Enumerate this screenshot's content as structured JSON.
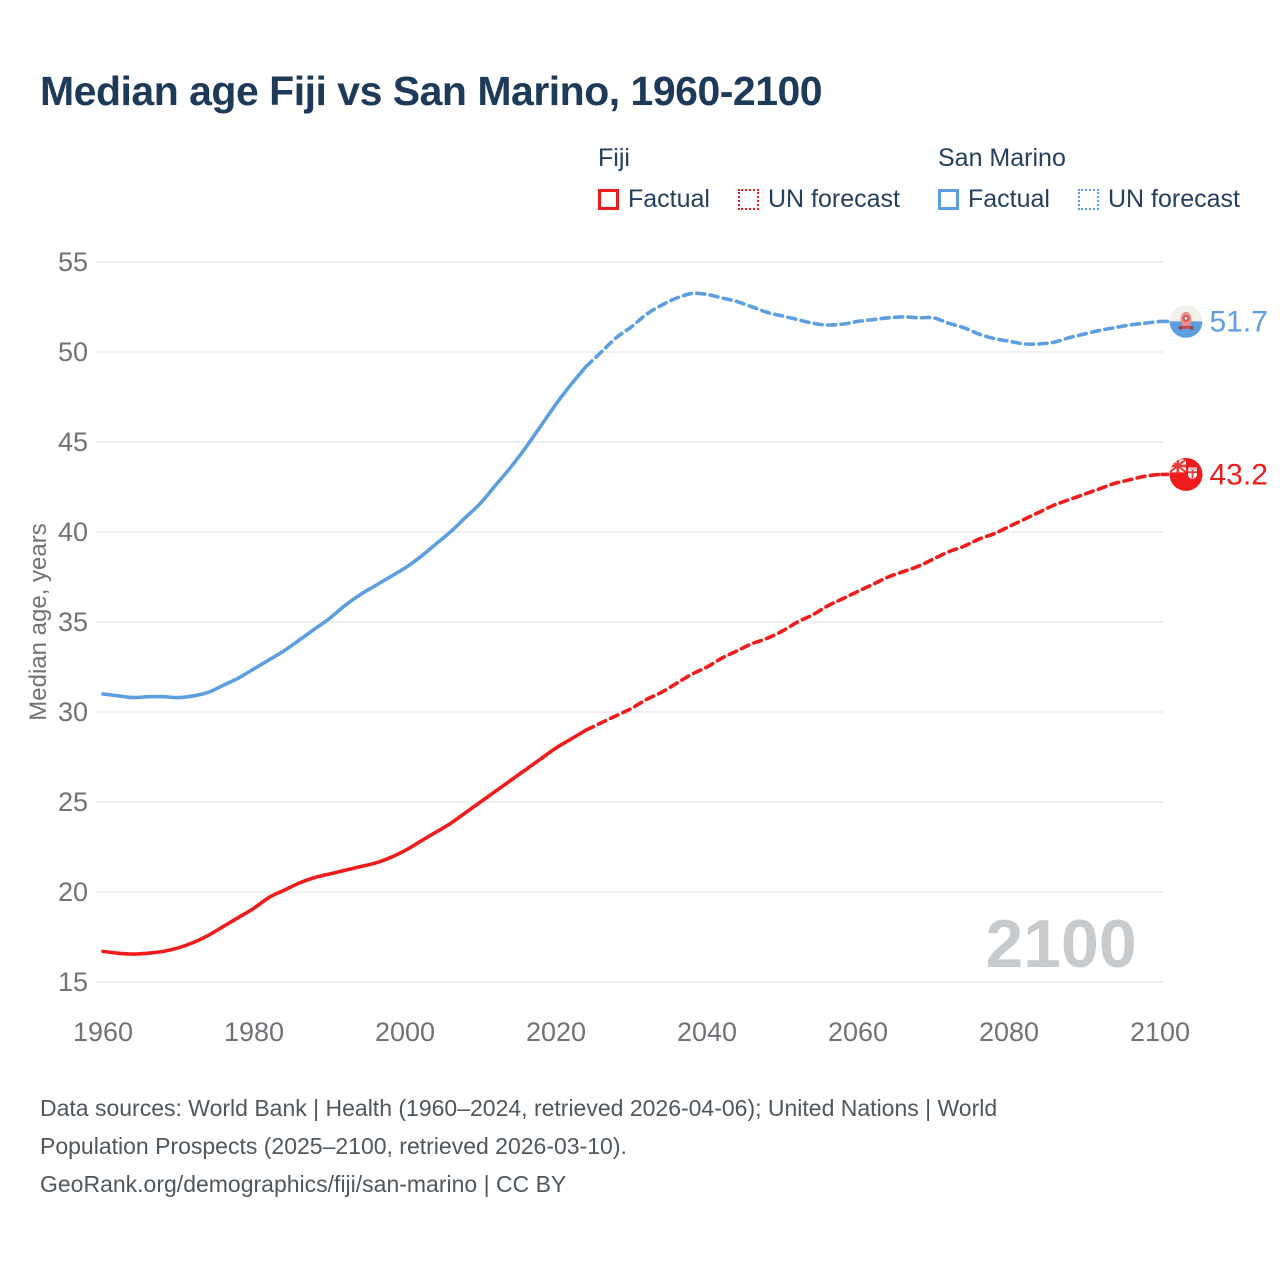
{
  "title": "Median age Fiji vs San Marino, 1960-2100",
  "legend": {
    "groups": [
      {
        "name": "Fiji",
        "color": "#ee1c1c",
        "items": [
          {
            "label": "Factual",
            "style": "solid"
          },
          {
            "label": "UN forecast",
            "style": "dotted"
          }
        ]
      },
      {
        "name": "San Marino",
        "color": "#5d9ee1",
        "items": [
          {
            "label": "Factual",
            "style": "solid"
          },
          {
            "label": "UN forecast",
            "style": "dotted"
          }
        ]
      }
    ]
  },
  "chart_data": {
    "type": "line",
    "title": "Median age Fiji vs San Marino, 1960-2100",
    "xlabel": "",
    "ylabel": "Median age, years",
    "xlim": [
      1955,
      2112
    ],
    "ylim": [
      13,
      57
    ],
    "x_ticks": [
      1960,
      1980,
      2000,
      2020,
      2040,
      2060,
      2080,
      2100
    ],
    "y_ticks": [
      15,
      20,
      25,
      30,
      35,
      40,
      45,
      50,
      55
    ],
    "grid": "horizontal",
    "legend_position": "top-right",
    "watermark": "2100",
    "series": [
      {
        "name": "San Marino — Factual",
        "country": "San Marino",
        "segment": "factual",
        "color": "#5d9ee1",
        "dash": "solid",
        "points": [
          [
            1960,
            31.0
          ],
          [
            1962,
            30.9
          ],
          [
            1964,
            30.8
          ],
          [
            1966,
            30.85
          ],
          [
            1968,
            30.85
          ],
          [
            1970,
            30.8
          ],
          [
            1972,
            30.9
          ],
          [
            1974,
            31.1
          ],
          [
            1976,
            31.5
          ],
          [
            1978,
            31.9
          ],
          [
            1980,
            32.4
          ],
          [
            1982,
            32.9
          ],
          [
            1984,
            33.4
          ],
          [
            1986,
            34.0
          ],
          [
            1988,
            34.6
          ],
          [
            1990,
            35.2
          ],
          [
            1992,
            35.9
          ],
          [
            1994,
            36.5
          ],
          [
            1996,
            37.0
          ],
          [
            1998,
            37.5
          ],
          [
            2000,
            38.0
          ],
          [
            2002,
            38.6
          ],
          [
            2004,
            39.3
          ],
          [
            2006,
            40.0
          ],
          [
            2008,
            40.8
          ],
          [
            2010,
            41.6
          ],
          [
            2012,
            42.6
          ],
          [
            2014,
            43.6
          ],
          [
            2016,
            44.7
          ],
          [
            2018,
            45.9
          ],
          [
            2020,
            47.1
          ],
          [
            2022,
            48.2
          ],
          [
            2024,
            49.2
          ]
        ]
      },
      {
        "name": "San Marino — UN forecast",
        "country": "San Marino",
        "segment": "forecast",
        "color": "#5d9ee1",
        "dash": "dashed",
        "points": [
          [
            2024,
            49.2
          ],
          [
            2026,
            50.0
          ],
          [
            2028,
            50.8
          ],
          [
            2030,
            51.4
          ],
          [
            2032,
            52.1
          ],
          [
            2034,
            52.6
          ],
          [
            2036,
            53.0
          ],
          [
            2038,
            53.25
          ],
          [
            2040,
            53.2
          ],
          [
            2042,
            53.0
          ],
          [
            2044,
            52.8
          ],
          [
            2046,
            52.5
          ],
          [
            2048,
            52.2
          ],
          [
            2050,
            52.0
          ],
          [
            2052,
            51.8
          ],
          [
            2054,
            51.6
          ],
          [
            2056,
            51.5
          ],
          [
            2058,
            51.55
          ],
          [
            2060,
            51.7
          ],
          [
            2062,
            51.8
          ],
          [
            2064,
            51.9
          ],
          [
            2066,
            51.95
          ],
          [
            2068,
            51.9
          ],
          [
            2070,
            51.9
          ],
          [
            2072,
            51.6
          ],
          [
            2074,
            51.35
          ],
          [
            2076,
            51.0
          ],
          [
            2078,
            50.75
          ],
          [
            2080,
            50.6
          ],
          [
            2082,
            50.45
          ],
          [
            2084,
            50.45
          ],
          [
            2086,
            50.55
          ],
          [
            2088,
            50.8
          ],
          [
            2090,
            51.0
          ],
          [
            2092,
            51.2
          ],
          [
            2094,
            51.35
          ],
          [
            2096,
            51.5
          ],
          [
            2098,
            51.6
          ],
          [
            2100,
            51.7
          ]
        ]
      },
      {
        "name": "Fiji — Factual",
        "country": "Fiji",
        "segment": "factual",
        "color": "#ee1c1c",
        "dash": "solid",
        "points": [
          [
            1960,
            16.7
          ],
          [
            1962,
            16.6
          ],
          [
            1964,
            16.55
          ],
          [
            1966,
            16.6
          ],
          [
            1968,
            16.7
          ],
          [
            1970,
            16.9
          ],
          [
            1972,
            17.2
          ],
          [
            1974,
            17.6
          ],
          [
            1976,
            18.1
          ],
          [
            1978,
            18.6
          ],
          [
            1980,
            19.1
          ],
          [
            1982,
            19.7
          ],
          [
            1984,
            20.1
          ],
          [
            1986,
            20.5
          ],
          [
            1988,
            20.8
          ],
          [
            1990,
            21.0
          ],
          [
            1992,
            21.2
          ],
          [
            1994,
            21.4
          ],
          [
            1996,
            21.6
          ],
          [
            1998,
            21.9
          ],
          [
            2000,
            22.3
          ],
          [
            2002,
            22.8
          ],
          [
            2004,
            23.3
          ],
          [
            2006,
            23.8
          ],
          [
            2008,
            24.4
          ],
          [
            2010,
            25.0
          ],
          [
            2012,
            25.6
          ],
          [
            2014,
            26.2
          ],
          [
            2016,
            26.8
          ],
          [
            2018,
            27.4
          ],
          [
            2020,
            28.0
          ],
          [
            2022,
            28.5
          ],
          [
            2024,
            29.0
          ]
        ]
      },
      {
        "name": "Fiji — UN forecast",
        "country": "Fiji",
        "segment": "forecast",
        "color": "#ee1c1c",
        "dash": "dashed",
        "points": [
          [
            2024,
            29.0
          ],
          [
            2026,
            29.4
          ],
          [
            2028,
            29.8
          ],
          [
            2030,
            30.2
          ],
          [
            2032,
            30.7
          ],
          [
            2034,
            31.1
          ],
          [
            2036,
            31.6
          ],
          [
            2038,
            32.1
          ],
          [
            2040,
            32.5
          ],
          [
            2042,
            33.0
          ],
          [
            2044,
            33.4
          ],
          [
            2046,
            33.8
          ],
          [
            2048,
            34.1
          ],
          [
            2050,
            34.5
          ],
          [
            2052,
            35.0
          ],
          [
            2054,
            35.4
          ],
          [
            2056,
            35.9
          ],
          [
            2058,
            36.3
          ],
          [
            2060,
            36.7
          ],
          [
            2062,
            37.1
          ],
          [
            2064,
            37.5
          ],
          [
            2066,
            37.8
          ],
          [
            2068,
            38.1
          ],
          [
            2070,
            38.5
          ],
          [
            2072,
            38.9
          ],
          [
            2074,
            39.2
          ],
          [
            2076,
            39.6
          ],
          [
            2078,
            39.9
          ],
          [
            2080,
            40.3
          ],
          [
            2082,
            40.7
          ],
          [
            2084,
            41.1
          ],
          [
            2086,
            41.5
          ],
          [
            2088,
            41.8
          ],
          [
            2090,
            42.1
          ],
          [
            2092,
            42.4
          ],
          [
            2094,
            42.7
          ],
          [
            2096,
            42.9
          ],
          [
            2098,
            43.1
          ],
          [
            2100,
            43.2
          ]
        ]
      }
    ],
    "end_markers": [
      {
        "country": "San Marino",
        "flag": "san-marino",
        "value": 51.7,
        "value_label": "51.7",
        "color": "#5d9ee1"
      },
      {
        "country": "Fiji",
        "flag": "fiji",
        "value": 43.2,
        "value_label": "43.2",
        "color": "#ee1c1c"
      }
    ]
  },
  "colors": {
    "fiji": "#ee1c1c",
    "san_marino": "#5d9ee1",
    "title_text": "#1d3a59",
    "axis_text": "#6f7276",
    "gridline": "#e9ebed",
    "watermark": "#c8cbce",
    "footer_text": "#4e565e"
  },
  "footer": {
    "line1": "Data sources: World Bank | Health (1960–2024, retrieved 2026-04-06); United Nations | World",
    "line2": "Population Prospects (2025–2100, retrieved 2026-03-10).",
    "line3": "GeoRank.org/demographics/fiji/san-marino | CC BY"
  }
}
